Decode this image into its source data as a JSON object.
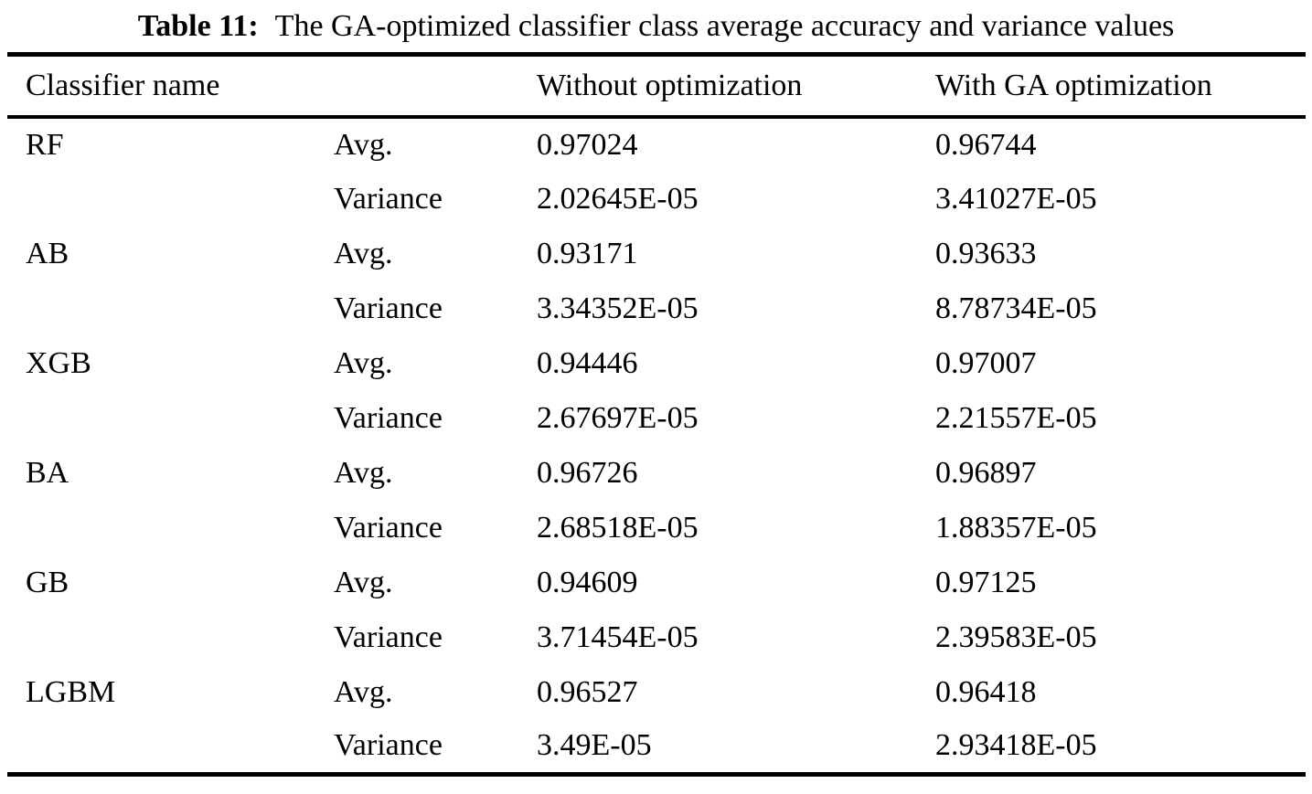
{
  "caption": {
    "label": "Table 11:",
    "text": "The GA-optimized classifier class average accuracy and variance values"
  },
  "header": {
    "classifier": "Classifier name",
    "without": "Without optimization",
    "with_ga": "With GA optimization"
  },
  "table": {
    "rows": [
      {
        "classifier": "RF",
        "metric": "Avg.",
        "without": "0.97024",
        "with_ga": "0.96744"
      },
      {
        "classifier": "",
        "metric": "Variance",
        "without": "2.02645E-05",
        "with_ga": "3.41027E-05"
      },
      {
        "classifier": "AB",
        "metric": "Avg.",
        "without": "0.93171",
        "with_ga": "0.93633"
      },
      {
        "classifier": "",
        "metric": "Variance",
        "without": "3.34352E-05",
        "with_ga": "8.78734E-05"
      },
      {
        "classifier": "XGB",
        "metric": "Avg.",
        "without": "0.94446",
        "with_ga": "0.97007"
      },
      {
        "classifier": "",
        "metric": "Variance",
        "without": "2.67697E-05",
        "with_ga": "2.21557E-05"
      },
      {
        "classifier": "BA",
        "metric": "Avg.",
        "without": "0.96726",
        "with_ga": "0.96897"
      },
      {
        "classifier": "",
        "metric": "Variance",
        "without": "2.68518E-05",
        "with_ga": "1.88357E-05"
      },
      {
        "classifier": "GB",
        "metric": "Avg.",
        "without": "0.94609",
        "with_ga": "0.97125"
      },
      {
        "classifier": "",
        "metric": "Variance",
        "without": "3.71454E-05",
        "with_ga": "2.39583E-05"
      },
      {
        "classifier": "LGBM",
        "metric": "Avg.",
        "without": "0.96527",
        "with_ga": "0.96418"
      },
      {
        "classifier": "",
        "metric": "Variance",
        "without": "3.49E-05",
        "with_ga": "2.93418E-05"
      }
    ]
  }
}
